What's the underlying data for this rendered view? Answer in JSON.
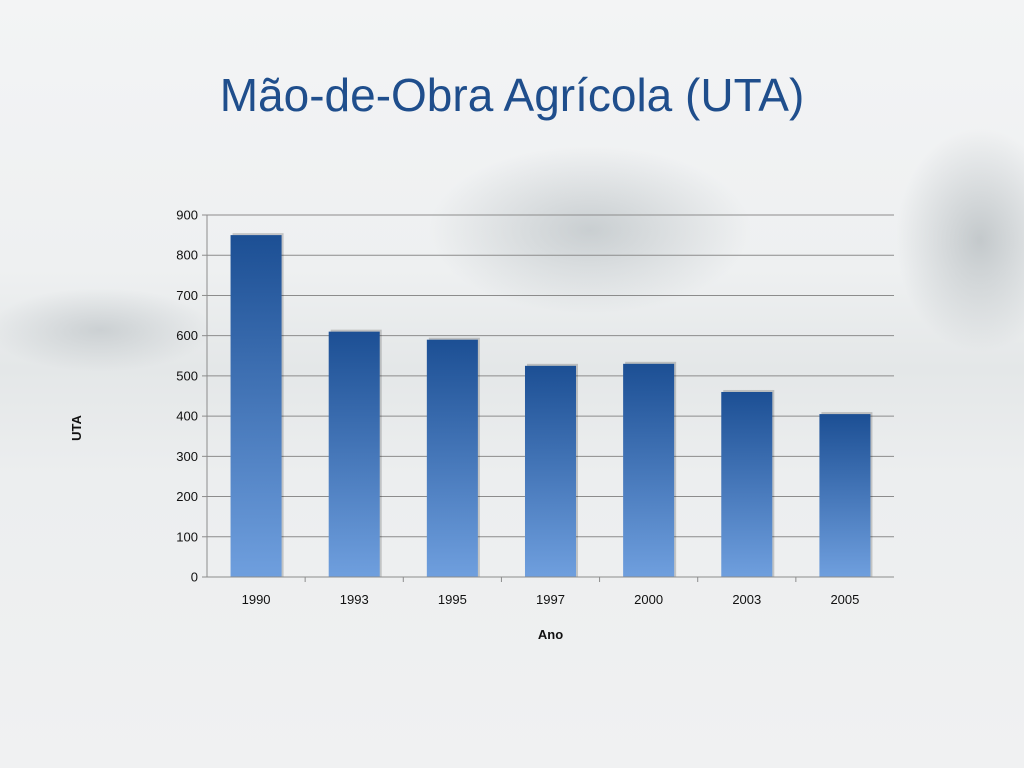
{
  "slide": {
    "title": "Mão-de-Obra Agrícola (UTA)"
  },
  "chart_data": {
    "type": "bar",
    "title": "",
    "xlabel": "Ano",
    "ylabel": "UTA",
    "categories": [
      "1990",
      "1993",
      "1995",
      "1997",
      "2000",
      "2003",
      "2005"
    ],
    "values": [
      850,
      610,
      590,
      525,
      530,
      460,
      405
    ],
    "ylim": [
      0,
      900
    ],
    "yticks": [
      0,
      100,
      200,
      300,
      400,
      500,
      600,
      700,
      800,
      900
    ],
    "grid": true,
    "legend": "none",
    "colors": {
      "bar_top": "#1c4f94",
      "bar_bottom": "#6f9fde",
      "grid": "#8c8c8c"
    }
  }
}
